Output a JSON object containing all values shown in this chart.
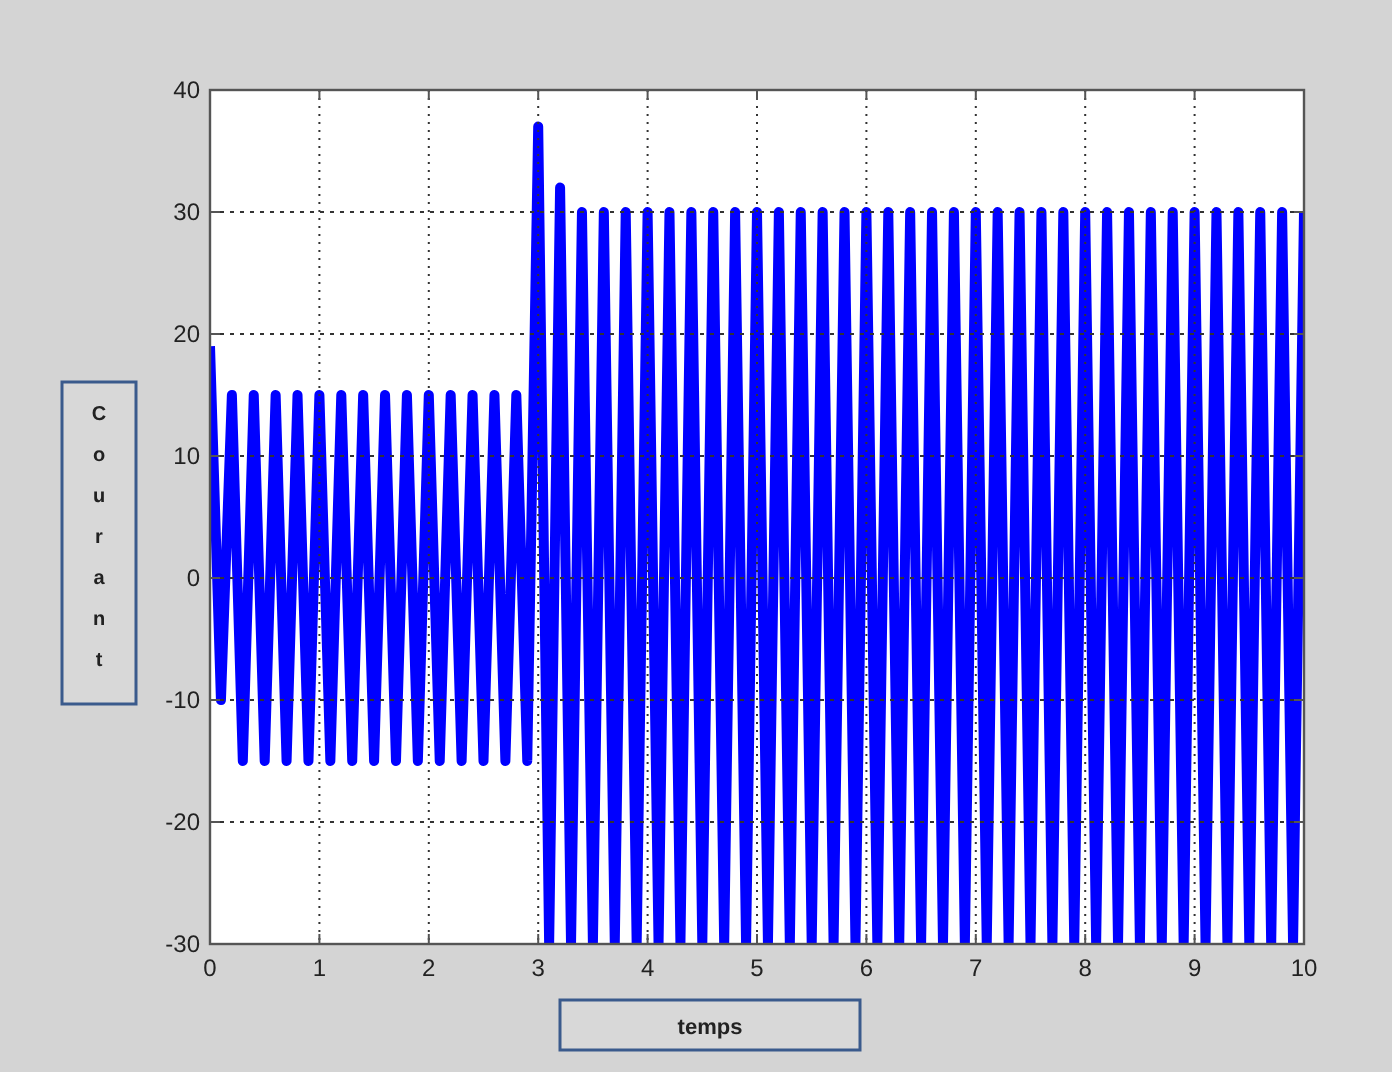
{
  "chart_data": {
    "type": "line",
    "xlabel": "temps",
    "ylabel": "Courant",
    "xlim": [
      0,
      10
    ],
    "ylim": [
      -30,
      40
    ],
    "xticks": [
      0,
      1,
      2,
      3,
      4,
      5,
      6,
      7,
      8,
      9,
      10
    ],
    "yticks": [
      -30,
      -20,
      -10,
      0,
      10,
      20,
      30,
      40
    ],
    "grid": true,
    "series": [
      {
        "color": "#0000ff",
        "x": [
          0,
          0.1,
          0.2,
          0.3,
          0.4,
          0.5,
          0.6,
          0.7,
          0.8,
          0.9,
          1,
          1.1,
          1.2,
          1.3,
          1.4,
          1.5,
          1.6,
          1.7,
          1.8,
          1.9,
          2,
          2.1,
          2.2,
          2.3,
          2.4,
          2.5,
          2.6,
          2.7,
          2.8,
          2.9,
          3,
          3.1,
          3.2,
          3.3,
          3.4,
          3.5,
          3.6,
          3.7,
          3.8,
          3.9,
          4,
          4.1,
          4.2,
          4.3,
          4.4,
          4.5,
          4.6,
          4.7,
          4.8,
          4.9,
          5,
          5.1,
          5.2,
          5.3,
          5.4,
          5.5,
          5.6,
          5.7,
          5.8,
          5.9,
          6,
          6.1,
          6.2,
          6.3,
          6.4,
          6.5,
          6.6,
          6.7,
          6.8,
          6.9,
          7,
          7.1,
          7.2,
          7.3,
          7.4,
          7.5,
          7.6,
          7.7,
          7.8,
          7.9,
          8,
          8.1,
          8.2,
          8.3,
          8.4,
          8.5,
          8.6,
          8.7,
          8.8,
          8.9,
          9,
          9.1,
          9.2,
          9.3,
          9.4,
          9.5,
          9.6,
          9.7,
          9.8,
          9.9,
          10
        ],
        "values": [
          19,
          -10,
          15,
          -15,
          15,
          -15,
          15,
          -15,
          15,
          -15,
          15,
          -15,
          15,
          -15,
          15,
          -15,
          15,
          -15,
          15,
          -15,
          15,
          -15,
          15,
          -15,
          15,
          -15,
          15,
          -15,
          15,
          -15,
          37,
          -30,
          32,
          -30,
          30,
          -30,
          30,
          -30,
          30,
          -30,
          30,
          -30,
          30,
          -30,
          30,
          -30,
          30,
          -30,
          30,
          -30,
          30,
          -30,
          30,
          -30,
          30,
          -30,
          30,
          -30,
          30,
          -30,
          30,
          -30,
          30,
          -30,
          30,
          -30,
          30,
          -30,
          30,
          -30,
          30,
          -30,
          30,
          -30,
          30,
          -30,
          30,
          -30,
          30,
          -30,
          30,
          -30,
          30,
          -30,
          30,
          -30,
          30,
          -30,
          30,
          -30,
          30,
          -30,
          30,
          -30,
          30,
          -30,
          30,
          -30,
          30,
          -30,
          30
        ]
      }
    ]
  }
}
